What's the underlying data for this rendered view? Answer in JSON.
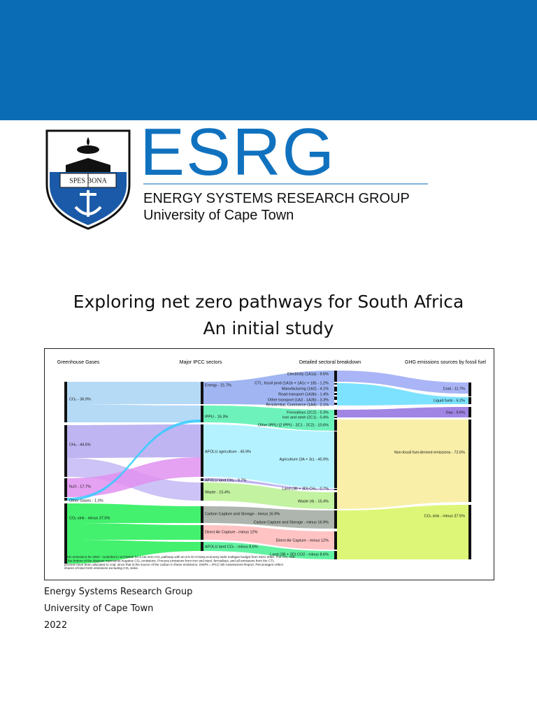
{
  "header": {
    "acronym": "ESRG",
    "name": "ENERGY SYSTEMS RESEARCH GROUP",
    "university": "University of Cape Town",
    "logo_motto": "SPES BONA"
  },
  "title": [
    "Exploring net zero pathways for South Africa",
    "An initial study"
  ],
  "figure": {
    "columns": [
      "Greenhouse Gases",
      "Major IPCC sectors",
      "Detailed sectoral breakdown",
      "GHG emissions sources by fossil fuel"
    ],
    "nodes": [
      [
        "CO₂ - 36.9%",
        "CH₄ - 44.5%",
        "N₂O - 17.7%",
        "Other Gases - 1.0%",
        "CO₂ sink - minus 37.5%"
      ],
      [
        "Energy - 21.7%",
        "IPPU - 16.3%",
        "AFOLU agriculture - 45.9%",
        "AFOLU land CH₄ - 0.7%",
        "Waste - 15.4%",
        "Carbon Capture and Storage - minus 16.9%",
        "Direct Air Capture - minus 12%",
        "AFOLU land CO₂ - minus 8.6%"
      ],
      [
        "Electricity (1A1a) - 9.6%",
        "CTL, fossil prod (1A1b + 1A1c + 1B) - 1.2%",
        "Manufacturing (1A2) - 4.1%",
        "Road transport (1A3b) - 1.4%",
        "Other transport (1A3 - 1A3b) - 3.3%",
        "Residential, Commerce (1A4) - 2.1%",
        "Ferroalloys (2C2) - 5.3%",
        "Iron and steel (2C1) - 0.4%",
        "Other IPPU (2 IPPU - 2C1 - 2C2) - 10.6%",
        "Agriculture (3A + 3c) - 45.9%",
        "Land (3B + 3D) CH₄ - 0.7%",
        "Waste (4) - 15.4%",
        "Carbon Capture and Storage - minus 16.9%",
        "Direct Air Capture - minus 12%",
        "Land (3B + 3D) CO2 - minus 8.6%"
      ],
      [
        "Coal - 11.7%",
        "Liquid fuels - 6.2%",
        "Gas - 9.6%",
        "Non-fossil fuel-derived emissions - 72.6%",
        "CO₂ sink - minus 37.5%"
      ]
    ],
    "caption": "GHG emissions for 2050 - modelled in SATIMGE for a net zero CO₂ pathway with an 8.5 Gt CO2eq economy-wide multigas budget from 2021-2050. The CO₂ sink at the bottom of the diagram represents negative CO₂ emissions. Process emissions from iron and steel, ferroalloys, and all emissions from the CTL process have been allocated to coal, since that is the source of the carbon in these emissions. GWPs = IPCC 5th Assessment Report. Percentages reflect shares of total GHG emissions excluding CO₂ sinks."
  },
  "footer": [
    "Energy Systems Research Group",
    "University of Cape Town",
    "2022"
  ]
}
